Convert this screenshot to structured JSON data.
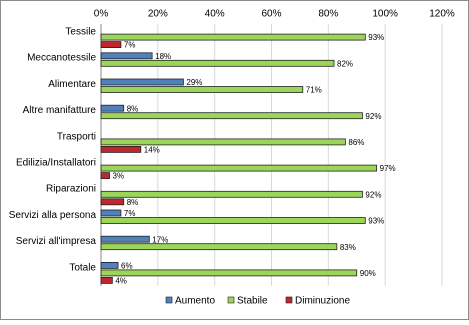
{
  "chart_data": {
    "type": "bar",
    "orientation": "horizontal",
    "categories": [
      "Tessile",
      "Meccanotessile",
      "Alimentare",
      "Altre manifatture",
      "Trasporti",
      "Edilizia/Installatori",
      "Riparazioni",
      "Servizi alla persona",
      "Servizi all'impresa",
      "Totale"
    ],
    "series": [
      {
        "name": "Aumento",
        "color": "#4f81bd",
        "values": [
          null,
          18,
          29,
          8,
          null,
          null,
          null,
          7,
          17,
          6
        ],
        "value_labels": [
          null,
          "18%",
          "29%",
          "8%",
          null,
          null,
          null,
          "7%",
          "17%",
          "6%"
        ]
      },
      {
        "name": "Stabile",
        "color": "#9bd55a",
        "values": [
          93,
          82,
          71,
          92,
          86,
          97,
          92,
          93,
          83,
          90
        ],
        "value_labels": [
          "93%",
          "82%",
          "71%",
          "92%",
          "86%",
          "97%",
          "92%",
          "93%",
          "83%",
          "90%"
        ]
      },
      {
        "name": "Diminuzione",
        "color": "#c0262c",
        "values": [
          7,
          null,
          null,
          null,
          14,
          3,
          8,
          null,
          null,
          4
        ],
        "value_labels": [
          "7%",
          null,
          null,
          null,
          "14%",
          "3%",
          "8%",
          null,
          null,
          "4%"
        ]
      }
    ],
    "xlim": [
      0,
      120
    ],
    "xticks": [
      {
        "value": 0,
        "label": "0%"
      },
      {
        "value": 20,
        "label": "20%"
      },
      {
        "value": 40,
        "label": "40%"
      },
      {
        "value": 60,
        "label": "60%"
      },
      {
        "value": 80,
        "label": "80%"
      },
      {
        "value": 100,
        "label": "100%"
      },
      {
        "value": 120,
        "label": "120%"
      }
    ],
    "grid": true,
    "legend": "bottom"
  }
}
